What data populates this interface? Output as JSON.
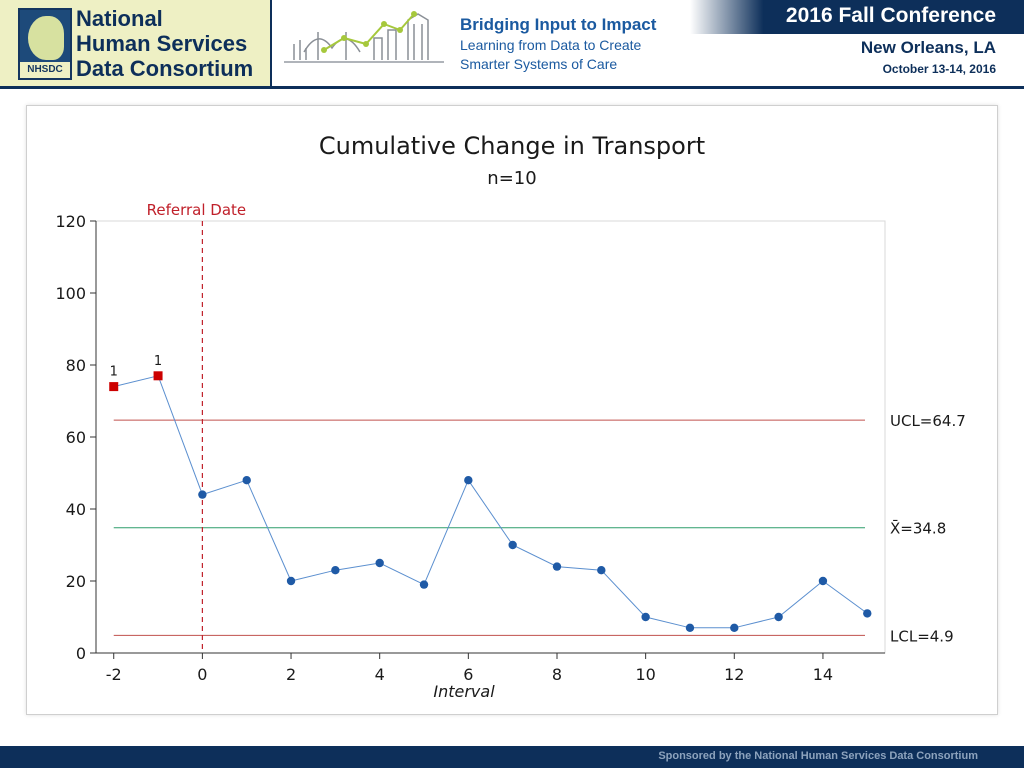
{
  "header": {
    "logo_lines": [
      "National",
      "Human Services",
      "Data Consortium"
    ],
    "logo_abbr": "NHSDC",
    "tagline_title": "Bridging Input to Impact",
    "tagline_line1": "Learning from Data to Create",
    "tagline_line2": "Smarter Systems of Care",
    "conference": "2016 Fall Conference",
    "city": "New Orleans, LA",
    "dates": "October 13-14, 2016"
  },
  "footer": {
    "text": "Sponsored by the National Human Services Data Consortium"
  },
  "chart_data": {
    "type": "line",
    "title": "Cumulative Change in Transport",
    "subtitle": "n=10",
    "xlabel": "Interval",
    "ylabel": "",
    "xlim": [
      -2.4,
      15.4
    ],
    "ylim": [
      0,
      120
    ],
    "xticks": [
      -2,
      0,
      2,
      4,
      6,
      8,
      10,
      12,
      14
    ],
    "yticks": [
      0,
      20,
      40,
      60,
      80,
      100,
      120
    ],
    "grid": false,
    "series": [
      {
        "name": "",
        "color": "#1f5aa6",
        "x": [
          -2,
          -1,
          0,
          1,
          2,
          3,
          4,
          5,
          6,
          7,
          8,
          9,
          10,
          11,
          12,
          13,
          14,
          15
        ],
        "y": [
          74,
          77,
          44,
          48,
          20,
          23,
          25,
          19,
          48,
          30,
          24,
          23,
          10,
          7,
          7,
          10,
          20,
          11
        ],
        "flagged_indices": [
          0,
          1
        ],
        "flag_label": "1",
        "flag_color": "#cc0000"
      }
    ],
    "reference_lines": [
      {
        "label": "UCL=64.7",
        "value": 64.7,
        "color": "#c0504d"
      },
      {
        "label": "X̄=34.8",
        "value": 34.8,
        "color": "#2e9e6b"
      },
      {
        "label": "LCL=4.9",
        "value": 4.9,
        "color": "#c0504d"
      }
    ],
    "vertical_marker": {
      "label": "Referral Date",
      "x": 0,
      "color": "#c0202a"
    }
  }
}
